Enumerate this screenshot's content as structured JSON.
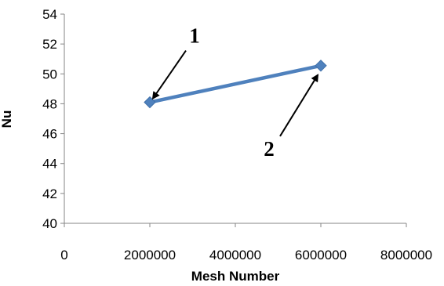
{
  "chart_data": {
    "type": "line",
    "title": "",
    "xlabel": "Mesh Number",
    "ylabel": "Nu",
    "xlim": [
      0,
      8000000
    ],
    "ylim": [
      40,
      54
    ],
    "x_ticks": [
      "0",
      "2000000",
      "4000000",
      "6000000",
      "8000000"
    ],
    "y_ticks": [
      "40",
      "42",
      "44",
      "46",
      "48",
      "50",
      "52",
      "54"
    ],
    "grid": false,
    "legend": "none",
    "series": [
      {
        "x": [
          2000000,
          6000000
        ],
        "y": [
          48.1,
          50.55
        ],
        "color": "#4f81bd",
        "marker": "diamond"
      }
    ],
    "annotations": [
      {
        "text": "1",
        "point_index": 0
      },
      {
        "text": "2",
        "point_index": 1
      }
    ]
  }
}
